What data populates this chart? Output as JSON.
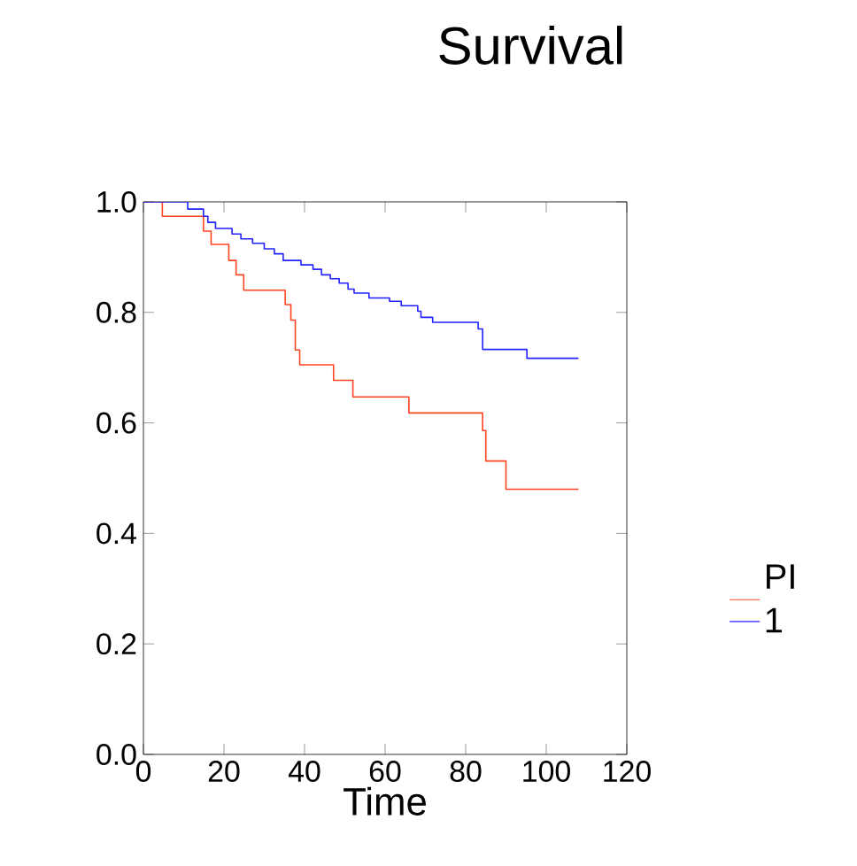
{
  "chart_data": {
    "type": "step",
    "title": "Survival",
    "xlabel": "Time",
    "legend_title": "PI",
    "legend": "right",
    "xlim": [
      0,
      120
    ],
    "xticks": [
      0,
      20,
      40,
      60,
      80,
      100,
      120
    ],
    "ylim": [
      0,
      1
    ],
    "yticks": [
      {
        "value": 0,
        "label": "0.0"
      },
      0.2,
      0.4,
      0.6,
      0.8,
      {
        "value": 1,
        "label": "1.0"
      }
    ],
    "grid": false,
    "series": [
      {
        "color": "#ff4422",
        "x": [
          0,
          4.7,
          14.9,
          16.8,
          21.2,
          23.0,
          24.9,
          35.2,
          36.6,
          37.7,
          38.8,
          47.2,
          52.0,
          65.9,
          84.2,
          85.0,
          90.0,
          108.0
        ],
        "values": [
          1.0,
          0.974,
          0.947,
          0.923,
          0.894,
          0.868,
          0.84,
          0.814,
          0.786,
          0.732,
          0.705,
          0.677,
          0.647,
          0.618,
          0.586,
          0.531,
          0.48,
          0.48
        ]
      },
      {
        "name": "1",
        "color": "#2222ff",
        "x": [
          0,
          11.0,
          14.9,
          16.0,
          17.9,
          22.0,
          24.2,
          27.1,
          30.0,
          32.5,
          34.7,
          39.1,
          42.1,
          44.2,
          46.4,
          48.6,
          50.8,
          52.3,
          56.0,
          61.1,
          64.0,
          68.1,
          68.9,
          71.8,
          83.1,
          84.2,
          95.2,
          108.0
        ],
        "values": [
          1.0,
          0.987,
          0.974,
          0.963,
          0.952,
          0.942,
          0.933,
          0.925,
          0.915,
          0.906,
          0.894,
          0.886,
          0.878,
          0.868,
          0.861,
          0.853,
          0.842,
          0.835,
          0.826,
          0.82,
          0.812,
          0.802,
          0.791,
          0.782,
          0.77,
          0.733,
          0.717,
          0.717
        ]
      }
    ]
  }
}
